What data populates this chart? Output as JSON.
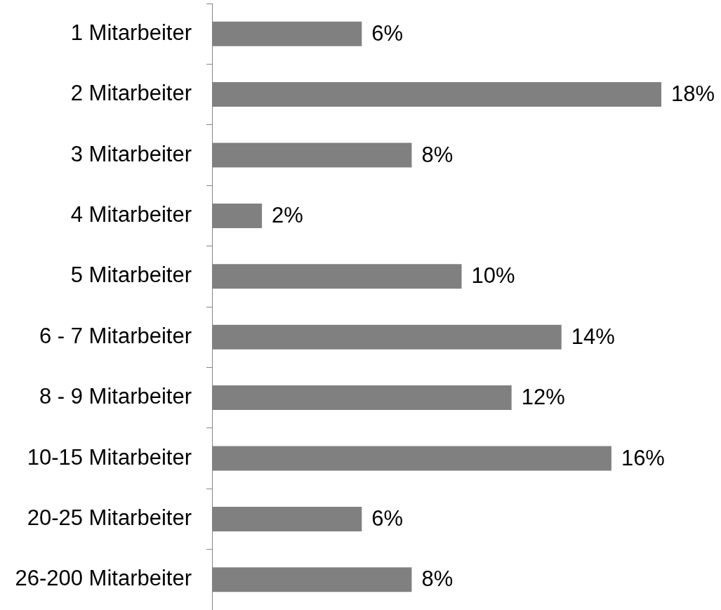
{
  "chart_data": {
    "type": "bar",
    "orientation": "horizontal",
    "categories": [
      "1 Mitarbeiter",
      "2 Mitarbeiter",
      "3 Mitarbeiter",
      "4 Mitarbeiter",
      "5 Mitarbeiter",
      "6 - 7 Mitarbeiter",
      "8 - 9 Mitarbeiter",
      "10-15 Mitarbeiter",
      "20-25 Mitarbeiter",
      "26-200 Mitarbeiter"
    ],
    "values": [
      6,
      18,
      8,
      2,
      10,
      14,
      12,
      16,
      6,
      8
    ],
    "value_labels": [
      "6%",
      "18%",
      "8%",
      "2%",
      "10%",
      "14%",
      "12%",
      "16%",
      "6%",
      "8%"
    ],
    "color": "#808080"
  }
}
